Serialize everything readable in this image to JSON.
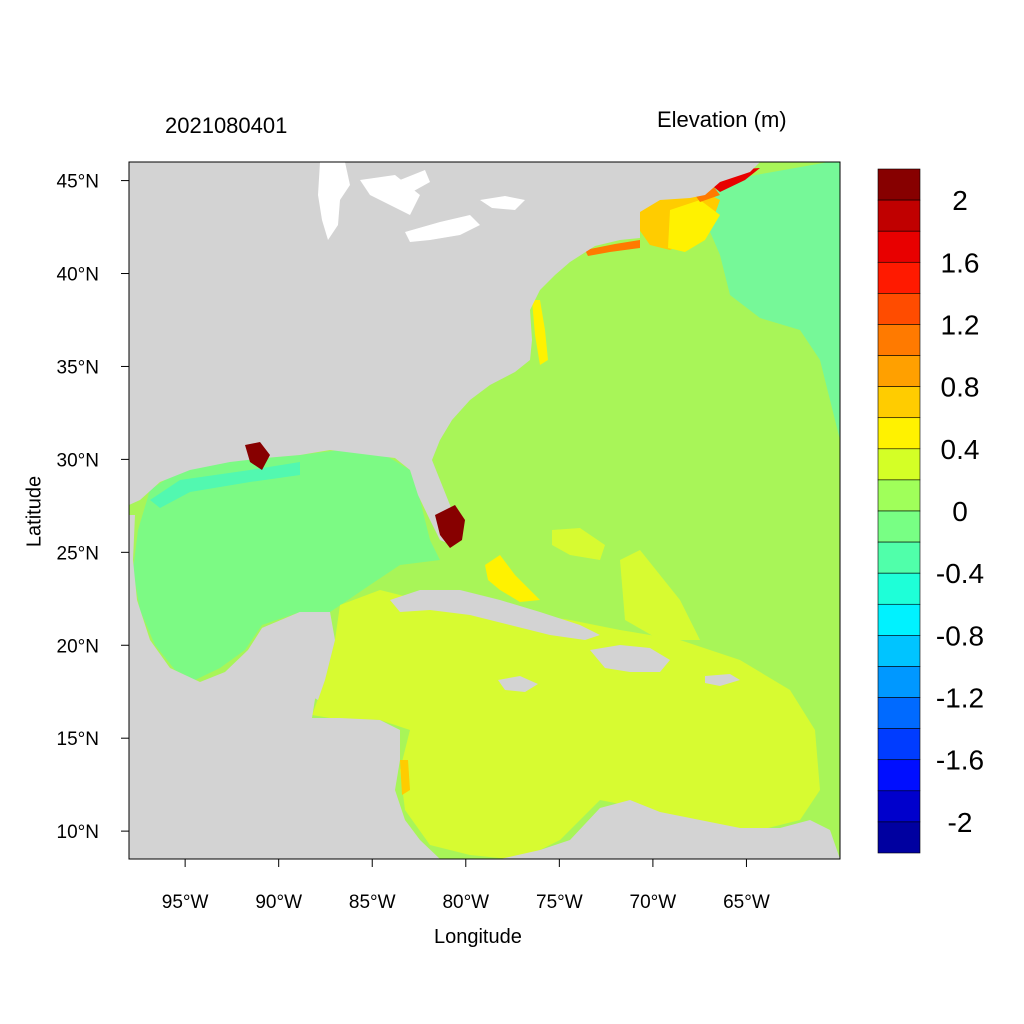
{
  "timestamp": "2021080401",
  "variable_title": "Elevation (m)",
  "axes": {
    "xlabel": "Longitude",
    "ylabel": "Latitude",
    "xticks": [
      "95°W",
      "90°W",
      "85°W",
      "80°W",
      "75°W",
      "70°W",
      "65°W"
    ],
    "yticks": [
      "45°N",
      "40°N",
      "35°N",
      "30°N",
      "25°N",
      "20°N",
      "15°N",
      "10°N"
    ],
    "lon_range": [
      -98,
      -60
    ],
    "lat_range": [
      8.5,
      46
    ]
  },
  "colorbar": {
    "labels": [
      "2",
      "1.6",
      "1.2",
      "0.8",
      "0.4",
      "0",
      "-0.4",
      "-0.8",
      "-1.2",
      "-1.6",
      "-2"
    ],
    "colors": [
      "#870000",
      "#c00000",
      "#e80000",
      "#ff1a00",
      "#ff4c00",
      "#ff7a00",
      "#ffa000",
      "#ffcc00",
      "#fff200",
      "#d4ff26",
      "#a0ff5a",
      "#78ff84",
      "#50ffaa",
      "#1effd8",
      "#00f2ff",
      "#00c4ff",
      "#0098ff",
      "#006aff",
      "#003cff",
      "#000eff",
      "#0000cc",
      "#0000a0"
    ]
  },
  "colors": {
    "land": "#d3d3d3",
    "lakes": "#ffffff",
    "gulf": "#7cfa84",
    "atlantic": "#a8f558",
    "caribbean": "#d7fb31",
    "northeast": "#76f898"
  }
}
